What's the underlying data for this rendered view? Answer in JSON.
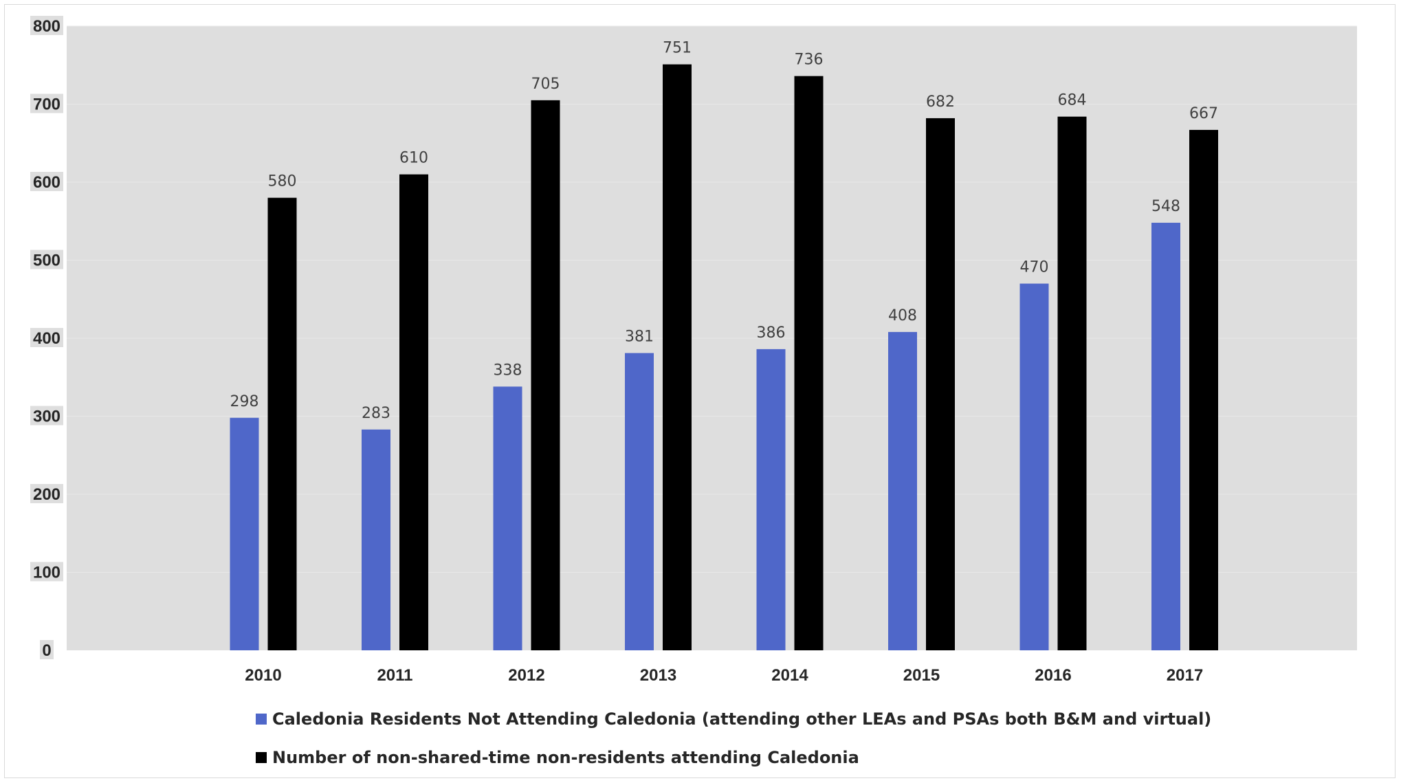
{
  "chart_data": {
    "type": "bar",
    "title": "",
    "xlabel": "",
    "ylabel": "",
    "ylim": [
      0,
      800
    ],
    "yticks": [
      "0",
      "100",
      "200",
      "300",
      "400",
      "500",
      "600",
      "700",
      "800"
    ],
    "grid": true,
    "legend_position": "bottom",
    "categories": [
      "2010",
      "2011",
      "2012",
      "2013",
      "2014",
      "2015",
      "2016",
      "2017"
    ],
    "series": [
      {
        "name": "Caledonia Residents Not Attending Caledonia (attending other LEAs and PSAs both B&M and virtual)",
        "color": "#4f67c9",
        "values": [
          298,
          283,
          338,
          381,
          386,
          408,
          470,
          548
        ]
      },
      {
        "name": "Number of non-shared-time non-residents attending Caledonia",
        "color": "#000000",
        "values": [
          580,
          610,
          705,
          751,
          736,
          682,
          684,
          667
        ]
      }
    ]
  }
}
